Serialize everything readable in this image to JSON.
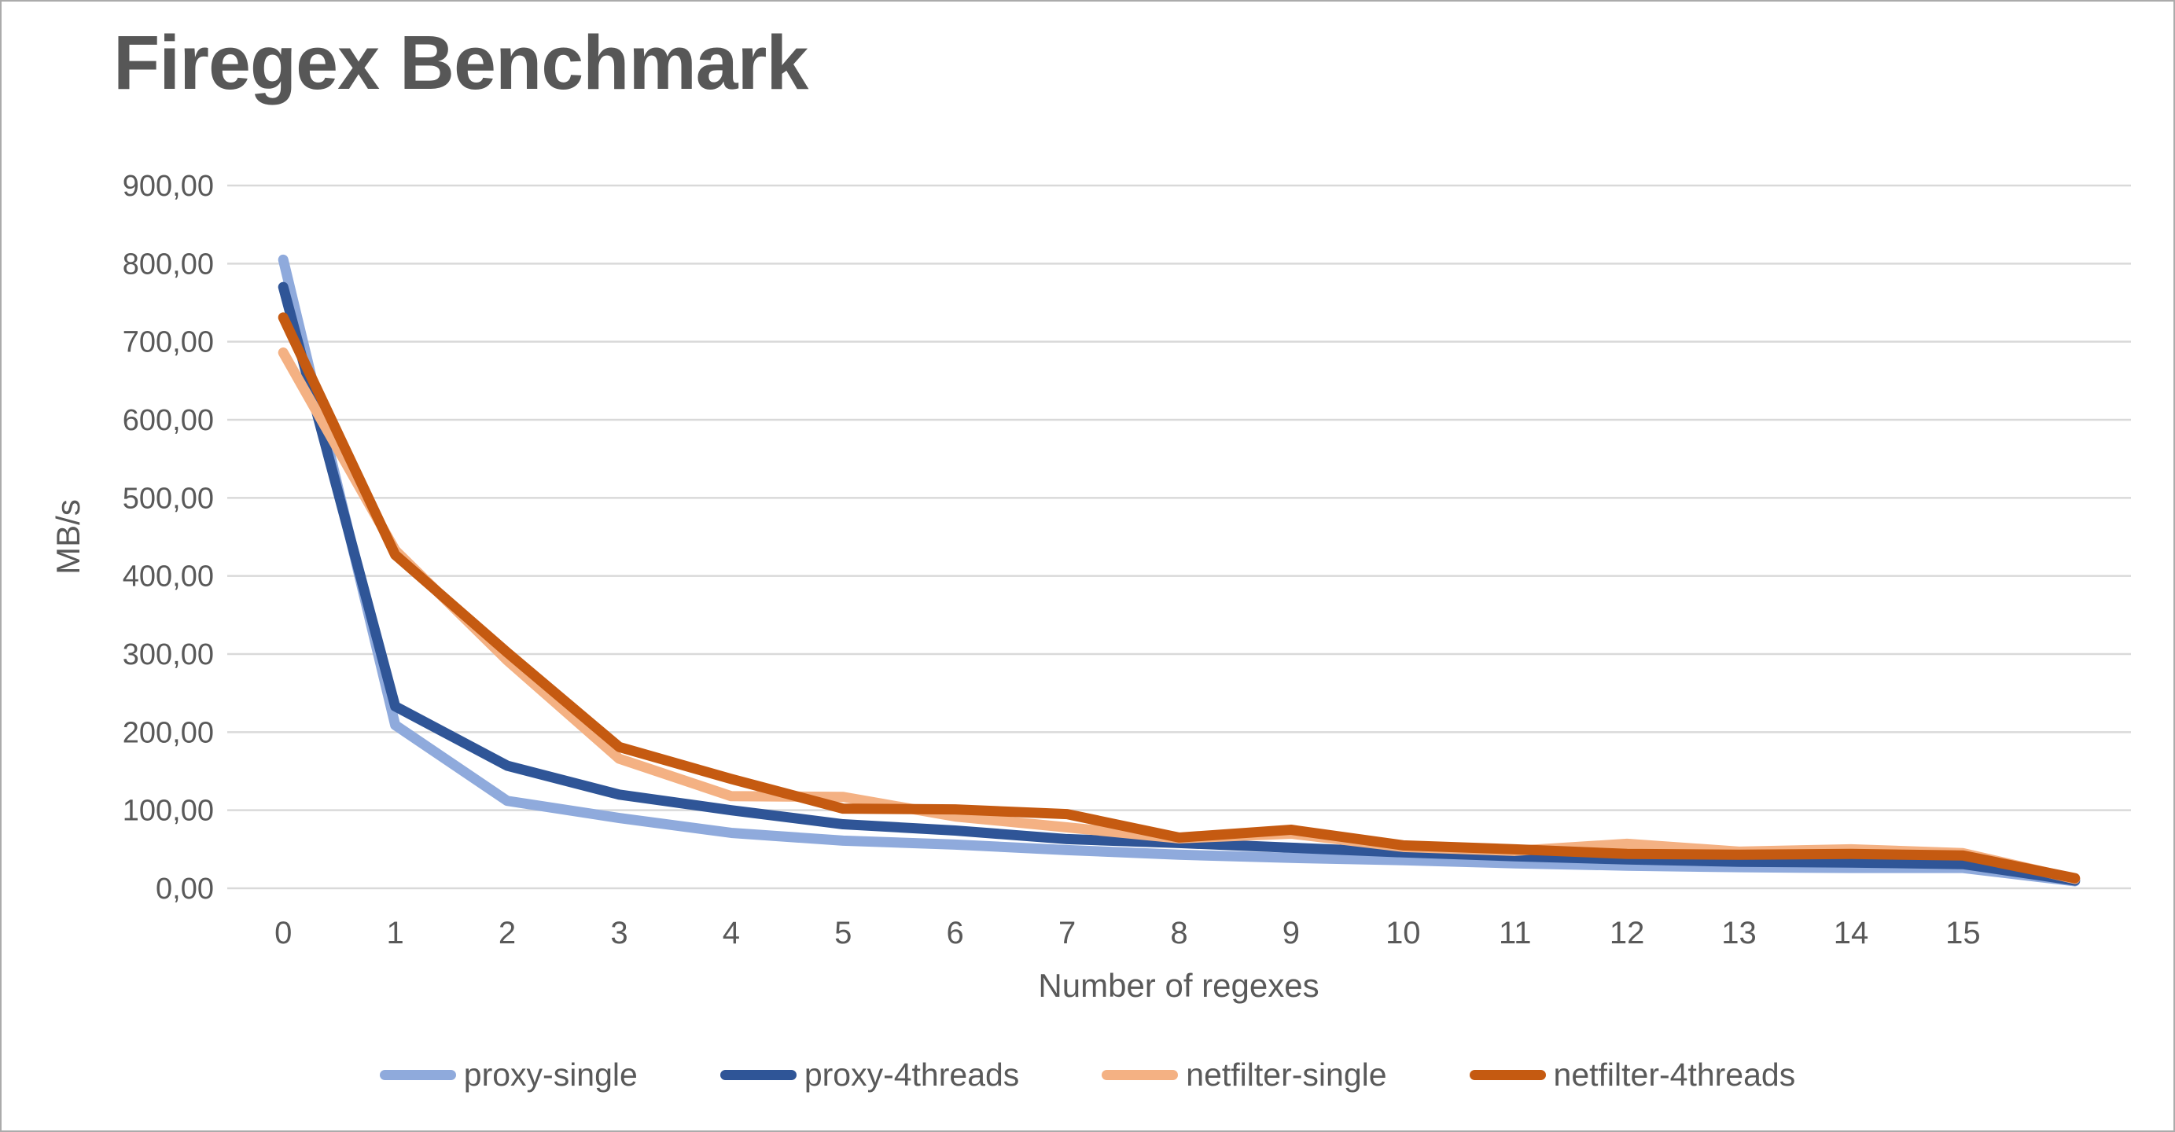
{
  "chart": {
    "title": "Firegex Benchmark"
  },
  "colors": {
    "title_text": "#575757",
    "axis_text": "#595959",
    "gridline": "#d9d9d9",
    "background": "#ffffff",
    "frame_border": "#ababab"
  },
  "chart_data": {
    "type": "line",
    "title": "Firegex Benchmark",
    "xlabel": "Number of regexes",
    "ylabel": "MB/s",
    "ylim": [
      0,
      900
    ],
    "y_tick_step": 100,
    "grid": true,
    "legend_position": "bottom",
    "x": [
      0,
      1,
      2,
      3,
      4,
      5,
      6,
      7,
      8,
      9,
      10,
      11,
      12,
      13,
      14,
      15,
      16
    ],
    "x_tick_labels": [
      "0",
      "1",
      "2",
      "3",
      "4",
      "5",
      "6",
      "7",
      "8",
      "9",
      "10",
      "11",
      "12",
      "13",
      "14",
      "15"
    ],
    "y_tick_labels": [
      "0,00",
      "100,00",
      "200,00",
      "300,00",
      "400,00",
      "500,00",
      "600,00",
      "700,00",
      "800,00",
      "900,00"
    ],
    "series": [
      {
        "name": "proxy-single",
        "color": "#8faadc",
        "values": [
          805,
          209,
          112,
          90,
          71,
          61,
          56,
          49,
          43,
          39,
          36,
          32,
          29,
          27,
          26,
          26,
          9
        ]
      },
      {
        "name": "proxy-4threads",
        "color": "#2f5597",
        "values": [
          770,
          233,
          157,
          120,
          100,
          82,
          74,
          63,
          58,
          52,
          46,
          41,
          37,
          34,
          33,
          31,
          10
        ]
      },
      {
        "name": "netfilter-single",
        "color": "#f4b183",
        "values": [
          686,
          433,
          292,
          166,
          118,
          117,
          92,
          78,
          64,
          70,
          53,
          48,
          57,
          47,
          50,
          45,
          12
        ]
      },
      {
        "name": "netfilter-4threads",
        "color": "#c55a11",
        "values": [
          731,
          427,
          302,
          181,
          140,
          102,
          101,
          95,
          65,
          75,
          55,
          50,
          44,
          43,
          44,
          42,
          13
        ]
      }
    ]
  }
}
